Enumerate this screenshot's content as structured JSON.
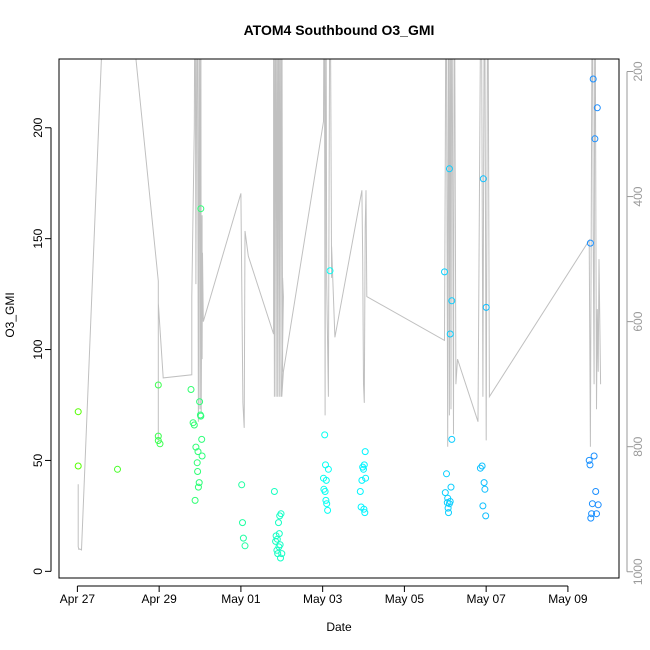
{
  "chart_data": {
    "type": "scatter",
    "title": "ATOM4 Southbound O3_GMI",
    "xlabel": "Date",
    "ylabel": "O3_GMI",
    "x_ticks": [
      "Apr 27",
      "Apr 29",
      "May 01",
      "May 03",
      "May 05",
      "May 07",
      "May 09"
    ],
    "x_tick_days": [
      0,
      2,
      4,
      6,
      8,
      10,
      12
    ],
    "xlim_days": [
      -0.45,
      13.25
    ],
    "y_ticks": [
      0,
      50,
      100,
      150,
      200
    ],
    "ylim": [
      -3,
      231
    ],
    "y2_ticks": [
      200,
      400,
      600,
      800,
      1000
    ],
    "y2lim": [
      1010,
      180
    ],
    "grid": false,
    "legend": "none",
    "colors": {
      "gradient_start": "#55ff00",
      "gradient_mid": "#00ffff",
      "gradient_end": "#1b8cff",
      "pressure_line": "#c0c0c0",
      "axis": "#000000",
      "right_axis": "#9a9a9a"
    },
    "series": [
      {
        "kind": "scatter",
        "points": [
          [
            0.02,
            72
          ],
          [
            0.02,
            47.5
          ],
          [
            0.98,
            46
          ],
          [
            1.98,
            84
          ],
          [
            1.98,
            61
          ],
          [
            1.98,
            59
          ],
          [
            2.02,
            57.5
          ],
          [
            2.78,
            82
          ],
          [
            2.83,
            67
          ],
          [
            2.86,
            66
          ],
          [
            2.9,
            56
          ],
          [
            2.93,
            49
          ],
          [
            2.95,
            54
          ],
          [
            2.96,
            38
          ],
          [
            2.98,
            40
          ],
          [
            2.99,
            76.5
          ],
          [
            3.01,
            70.5
          ],
          [
            3.02,
            70
          ],
          [
            3.02,
            163.5
          ],
          [
            3.04,
            59.5
          ],
          [
            3.05,
            52
          ],
          [
            2.88,
            32
          ],
          [
            2.94,
            45
          ],
          [
            4.02,
            39
          ],
          [
            4.04,
            22
          ],
          [
            4.06,
            15
          ],
          [
            4.1,
            11.5
          ],
          [
            4.82,
            36
          ],
          [
            4.85,
            13.5
          ],
          [
            4.86,
            16
          ],
          [
            4.88,
            9.5
          ],
          [
            4.89,
            14.5
          ],
          [
            4.9,
            8
          ],
          [
            4.92,
            22
          ],
          [
            4.93,
            11
          ],
          [
            4.94,
            17
          ],
          [
            4.95,
            25
          ],
          [
            4.96,
            12
          ],
          [
            4.97,
            6
          ],
          [
            4.98,
            26
          ],
          [
            5.0,
            8
          ],
          [
            6.05,
            61.5
          ],
          [
            6.02,
            42
          ],
          [
            6.07,
            48
          ],
          [
            6.09,
            41
          ],
          [
            6.03,
            37
          ],
          [
            6.06,
            36
          ],
          [
            6.08,
            32
          ],
          [
            6.1,
            30.5
          ],
          [
            6.12,
            27.5
          ],
          [
            6.14,
            46
          ],
          [
            6.18,
            135.5
          ],
          [
            6.92,
            36
          ],
          [
            6.94,
            29
          ],
          [
            6.96,
            41
          ],
          [
            6.98,
            47
          ],
          [
            7.0,
            46
          ],
          [
            7.01,
            28
          ],
          [
            7.02,
            48
          ],
          [
            7.03,
            26.5
          ],
          [
            7.04,
            54
          ],
          [
            7.05,
            42
          ],
          [
            8.98,
            135
          ],
          [
            9.03,
            44
          ],
          [
            9.0,
            35.5
          ],
          [
            9.05,
            31
          ],
          [
            9.06,
            33
          ],
          [
            9.07,
            28.5
          ],
          [
            9.08,
            26.5
          ],
          [
            9.1,
            30.5
          ],
          [
            9.12,
            31.5
          ],
          [
            9.14,
            38
          ],
          [
            9.16,
            122
          ],
          [
            9.12,
            107
          ],
          [
            9.16,
            59.5
          ],
          [
            9.1,
            181.5
          ],
          [
            9.86,
            46.5
          ],
          [
            9.9,
            47.5
          ],
          [
            9.92,
            29.5
          ],
          [
            9.95,
            40
          ],
          [
            9.97,
            37
          ],
          [
            9.99,
            25
          ],
          [
            10.0,
            119
          ],
          [
            9.93,
            177
          ],
          [
            12.52,
            50
          ],
          [
            12.54,
            48
          ],
          [
            12.55,
            148
          ],
          [
            12.56,
            24
          ],
          [
            12.58,
            26
          ],
          [
            12.6,
            30.5
          ],
          [
            12.62,
            222
          ],
          [
            12.64,
            52
          ],
          [
            12.66,
            195
          ],
          [
            12.68,
            36
          ],
          [
            12.7,
            26
          ],
          [
            12.72,
            209
          ],
          [
            12.74,
            30
          ]
        ]
      },
      {
        "kind": "line",
        "name": "",
        "points": [
          [
            0.02,
            860
          ],
          [
            0.02,
            910
          ],
          [
            0.02,
            960
          ],
          [
            0.04,
            965
          ],
          [
            0.04,
            963
          ],
          [
            0.1,
            965
          ],
          [
            0.6,
            160
          ],
          [
            1.0,
            -100
          ],
          [
            1.98,
            535
          ],
          [
            1.98,
            650
          ],
          [
            1.98,
            690
          ],
          [
            1.98,
            790
          ],
          [
            1.98,
            570
          ],
          [
            2.1,
            690
          ],
          [
            2.8,
            685
          ],
          [
            2.8,
            560
          ],
          [
            2.86,
            290
          ],
          [
            2.88,
            -50
          ],
          [
            2.9,
            540
          ],
          [
            2.93,
            -50
          ],
          [
            2.96,
            760
          ],
          [
            2.98,
            -50
          ],
          [
            3.0,
            740
          ],
          [
            3.02,
            -50
          ],
          [
            3.03,
            745
          ],
          [
            3.05,
            430
          ],
          [
            3.05,
            660
          ],
          [
            3.06,
            490
          ],
          [
            3.08,
            600
          ],
          [
            4.0,
            395
          ],
          [
            4.05,
            730
          ],
          [
            4.08,
            770
          ],
          [
            4.1,
            455
          ],
          [
            4.18,
            495
          ],
          [
            4.8,
            620
          ],
          [
            4.8,
            -50
          ],
          [
            4.82,
            720
          ],
          [
            4.84,
            -50
          ],
          [
            4.86,
            720
          ],
          [
            4.88,
            -50
          ],
          [
            4.9,
            720
          ],
          [
            4.92,
            -50
          ],
          [
            4.94,
            720
          ],
          [
            4.96,
            -50
          ],
          [
            4.98,
            720
          ],
          [
            5.0,
            -50
          ],
          [
            5.02,
            680
          ],
          [
            5.02,
            530
          ],
          [
            5.04,
            560
          ],
          [
            5.0,
            720
          ],
          [
            5.04,
            680
          ],
          [
            6.02,
            280
          ],
          [
            6.04,
            -50
          ],
          [
            6.06,
            750
          ],
          [
            6.08,
            -50
          ],
          [
            6.1,
            540
          ],
          [
            6.14,
            720
          ],
          [
            6.18,
            -50
          ],
          [
            6.22,
            530
          ],
          [
            6.22,
            480
          ],
          [
            6.3,
            625
          ],
          [
            6.96,
            390
          ],
          [
            6.98,
            500
          ],
          [
            7.0,
            700
          ],
          [
            7.02,
            730
          ],
          [
            7.04,
            450
          ],
          [
            7.06,
            390
          ],
          [
            7.08,
            560
          ],
          [
            8.98,
            630
          ],
          [
            9.0,
            330
          ],
          [
            9.02,
            -50
          ],
          [
            9.06,
            800
          ],
          [
            9.08,
            -50
          ],
          [
            9.1,
            750
          ],
          [
            9.12,
            -50
          ],
          [
            9.14,
            740
          ],
          [
            9.16,
            -50
          ],
          [
            9.2,
            780
          ],
          [
            9.22,
            -50
          ],
          [
            9.26,
            700
          ],
          [
            9.3,
            660
          ],
          [
            9.8,
            760
          ],
          [
            9.88,
            -50
          ],
          [
            9.92,
            720
          ],
          [
            9.96,
            -50
          ],
          [
            10.0,
            790
          ],
          [
            10.04,
            -50
          ],
          [
            10.08,
            720
          ],
          [
            12.52,
            470
          ],
          [
            12.55,
            800
          ],
          [
            12.6,
            -50
          ],
          [
            12.62,
            460
          ],
          [
            12.64,
            700
          ],
          [
            12.66,
            -50
          ],
          [
            12.7,
            740
          ],
          [
            12.72,
            580
          ],
          [
            12.74,
            680
          ],
          [
            12.76,
            500
          ],
          [
            12.8,
            700
          ]
        ]
      }
    ]
  }
}
